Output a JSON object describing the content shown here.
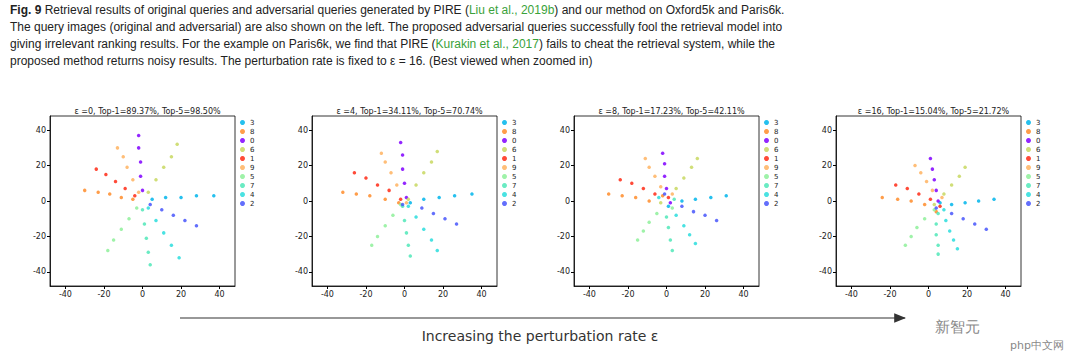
{
  "caption": {
    "label": "Fig. 9",
    "lines": [
      [
        " Retrieval results of original queries and adversarial queries generated by PIRE (",
        {
          "citation": "Liu et al., 2019b"
        },
        ") and our method on Oxford5k and Paris6k."
      ],
      [
        "The query images (original and adversarial) are also shown on the left. The proposed adversarial queries successfully fool the retrieval model into"
      ],
      [
        "giving irrelevant ranking results. For the example on Paris6k, we find that PIRE (",
        {
          "citation": "Kurakin et al., 2017"
        },
        ") fails to cheat the retrieval system, while the"
      ],
      [
        "proposed method returns noisy results. The perturbation rate is fixed to ε = 16. (Best viewed when zoomed in)"
      ]
    ]
  },
  "chart_data": [
    {
      "type": "scatter",
      "title": "ε =0, Top-1=89.37%, Top-5=98.50%",
      "xlim": [
        -48,
        48
      ],
      "ylim": [
        -48,
        48
      ],
      "xticks": [
        -40,
        -20,
        0,
        20,
        40
      ],
      "yticks": [
        -40,
        -20,
        0,
        20,
        40
      ],
      "legend": "right",
      "series": [
        {
          "name": "3",
          "color": "#00b5eb",
          "values": [
            [
              5,
              1
            ],
            [
              12,
              2
            ],
            [
              20,
              2
            ],
            [
              28,
              3
            ],
            [
              37,
              3
            ]
          ]
        },
        {
          "name": "8",
          "color": "#ff8c2a",
          "values": [
            [
              -5,
              1
            ],
            [
              -11,
              2
            ],
            [
              -17,
              4
            ],
            [
              -23,
              5
            ],
            [
              -30,
              6
            ]
          ]
        },
        {
          "name": "0",
          "color": "#8000ff",
          "values": [
            [
              0,
              6
            ],
            [
              -1,
              14
            ],
            [
              -1,
              22
            ],
            [
              -2,
              30
            ],
            [
              -2,
              37
            ]
          ]
        },
        {
          "name": "6",
          "color": "#c8d860",
          "values": [
            [
              3,
              5
            ],
            [
              7,
              12
            ],
            [
              11,
              19
            ],
            [
              15,
              25
            ],
            [
              18,
              32
            ]
          ]
        },
        {
          "name": "1",
          "color": "#ff2a15",
          "values": [
            [
              -4,
              3
            ],
            [
              -9,
              7
            ],
            [
              -14,
              11
            ],
            [
              -19,
              15
            ],
            [
              -24,
              18
            ]
          ]
        },
        {
          "name": "9",
          "color": "#ffb360",
          "values": [
            [
              -2,
              5
            ],
            [
              -5,
              12
            ],
            [
              -8,
              19
            ],
            [
              -10,
              25
            ],
            [
              -13,
              30
            ]
          ]
        },
        {
          "name": "5",
          "color": "#8ef09a",
          "values": [
            [
              -3,
              -4
            ],
            [
              -7,
              -10
            ],
            [
              -11,
              -16
            ],
            [
              -15,
              -22
            ],
            [
              -18,
              -28
            ]
          ]
        },
        {
          "name": "7",
          "color": "#50e8b8",
          "values": [
            [
              0,
              -5
            ],
            [
              1,
              -13
            ],
            [
              2,
              -21
            ],
            [
              3,
              -29
            ],
            [
              4,
              -36
            ]
          ]
        },
        {
          "name": "4",
          "color": "#2adddd",
          "values": [
            [
              3,
              -4
            ],
            [
              7,
              -11
            ],
            [
              11,
              -18
            ],
            [
              15,
              -25
            ],
            [
              19,
              -32
            ]
          ]
        },
        {
          "name": "2",
          "color": "#4856fb",
          "values": [
            [
              4,
              -2
            ],
            [
              10,
              -5
            ],
            [
              16,
              -8
            ],
            [
              22,
              -11
            ],
            [
              28,
              -14
            ]
          ]
        }
      ]
    },
    {
      "type": "scatter",
      "title": "ε =4, Top-1=34.11%, Top-5=70.74%",
      "xlim": [
        -48,
        48
      ],
      "ylim": [
        -48,
        48
      ],
      "xticks": [
        -40,
        -20,
        0,
        20,
        40
      ],
      "yticks": [
        -40,
        -20,
        0,
        20,
        40
      ],
      "legend": "right",
      "series": [
        {
          "name": "3",
          "color": "#00b5eb",
          "values": [
            [
              3,
              -1
            ],
            [
              10,
              1
            ],
            [
              18,
              2
            ],
            [
              26,
              3
            ],
            [
              35,
              4
            ]
          ]
        },
        {
          "name": "8",
          "color": "#ff8c2a",
          "values": [
            [
              -3,
              -1
            ],
            [
              -10,
              1
            ],
            [
              -18,
              3
            ],
            [
              -25,
              4
            ],
            [
              -32,
              5
            ]
          ]
        },
        {
          "name": "0",
          "color": "#8000ff",
          "values": [
            [
              1,
              2
            ],
            [
              0,
              10
            ],
            [
              -1,
              18
            ],
            [
              -1,
              26
            ],
            [
              -2,
              33
            ]
          ]
        },
        {
          "name": "6",
          "color": "#c8d860",
          "values": [
            [
              2,
              1
            ],
            [
              6,
              9
            ],
            [
              10,
              16
            ],
            [
              14,
              22
            ],
            [
              17,
              28
            ]
          ]
        },
        {
          "name": "1",
          "color": "#ff2a15",
          "values": [
            [
              -2,
              1
            ],
            [
              -8,
              6
            ],
            [
              -14,
              9
            ],
            [
              -20,
              13
            ],
            [
              -26,
              16
            ]
          ]
        },
        {
          "name": "9",
          "color": "#ffb360",
          "values": [
            [
              1,
              -1
            ],
            [
              -4,
              9
            ],
            [
              -7,
              16
            ],
            [
              -10,
              22
            ],
            [
              -12,
              27
            ]
          ]
        },
        {
          "name": "5",
          "color": "#8ef09a",
          "values": [
            [
              -2,
              -2
            ],
            [
              -6,
              -8
            ],
            [
              -10,
              -14
            ],
            [
              -14,
              -20
            ],
            [
              -17,
              -25
            ]
          ]
        },
        {
          "name": "7",
          "color": "#50e8b8",
          "values": [
            [
              -1,
              -3
            ],
            [
              0,
              -11
            ],
            [
              1,
              -18
            ],
            [
              2,
              -25
            ],
            [
              3,
              -31
            ]
          ]
        },
        {
          "name": "4",
          "color": "#2adddd",
          "values": [
            [
              2,
              -3
            ],
            [
              6,
              -9
            ],
            [
              10,
              -16
            ],
            [
              14,
              -22
            ],
            [
              17,
              -28
            ]
          ]
        },
        {
          "name": "2",
          "color": "#4856fb",
          "values": [
            [
              -1,
              -2
            ],
            [
              9,
              -4
            ],
            [
              15,
              -7
            ],
            [
              21,
              -10
            ],
            [
              27,
              -13
            ]
          ]
        }
      ]
    },
    {
      "type": "scatter",
      "title": "ε =8, Top-1=17.23%, Top-5=42.11%",
      "xlim": [
        -48,
        48
      ],
      "ylim": [
        -48,
        48
      ],
      "xticks": [
        -40,
        -20,
        0,
        20,
        40
      ],
      "yticks": [
        -40,
        -20,
        0,
        20,
        40
      ],
      "legend": "right",
      "series": [
        {
          "name": "3",
          "color": "#00b5eb",
          "values": [
            [
              1,
              -3
            ],
            [
              8,
              0
            ],
            [
              15,
              1
            ],
            [
              23,
              2
            ],
            [
              31,
              3
            ]
          ]
        },
        {
          "name": "8",
          "color": "#ff8c2a",
          "values": [
            [
              -2,
              3
            ],
            [
              -9,
              0
            ],
            [
              -16,
              2
            ],
            [
              -23,
              3
            ],
            [
              -30,
              4
            ]
          ]
        },
        {
          "name": "0",
          "color": "#8000ff",
          "values": [
            [
              2,
              -1
            ],
            [
              0,
              7
            ],
            [
              -1,
              14
            ],
            [
              -1,
              21
            ],
            [
              -2,
              27
            ]
          ]
        },
        {
          "name": "6",
          "color": "#c8d860",
          "values": [
            [
              -3,
              -1
            ],
            [
              5,
              7
            ],
            [
              9,
              13
            ],
            [
              13,
              19
            ],
            [
              16,
              24
            ]
          ]
        },
        {
          "name": "1",
          "color": "#ff2a15",
          "values": [
            [
              1,
              2
            ],
            [
              -6,
              4
            ],
            [
              -12,
              7
            ],
            [
              -18,
              10
            ],
            [
              -24,
              12
            ]
          ]
        },
        {
          "name": "9",
          "color": "#ffb360",
          "values": [
            [
              3,
              4
            ],
            [
              -3,
              8
            ],
            [
              -6,
              14
            ],
            [
              -9,
              19
            ],
            [
              -11,
              24
            ]
          ]
        },
        {
          "name": "5",
          "color": "#8ef09a",
          "values": [
            [
              3,
              -4
            ],
            [
              -5,
              -7
            ],
            [
              -9,
              -12
            ],
            [
              -12,
              -17
            ],
            [
              -15,
              -22
            ]
          ]
        },
        {
          "name": "7",
          "color": "#50e8b8",
          "values": [
            [
              4,
              1
            ],
            [
              0,
              -9
            ],
            [
              1,
              -15
            ],
            [
              2,
              -22
            ],
            [
              3,
              -28
            ]
          ]
        },
        {
          "name": "4",
          "color": "#2adddd",
          "values": [
            [
              -4,
              2
            ],
            [
              5,
              -8
            ],
            [
              9,
              -14
            ],
            [
              12,
              -19
            ],
            [
              15,
              -24
            ]
          ]
        },
        {
          "name": "2",
          "color": "#4856fb",
          "values": [
            [
              -1,
              4
            ],
            [
              8,
              -3
            ],
            [
              14,
              -6
            ],
            [
              20,
              -8
            ],
            [
              26,
              -11
            ]
          ]
        }
      ]
    },
    {
      "type": "scatter",
      "title": "ε =16, Top-1=15.04%, Top-5=21.72%",
      "xlim": [
        -48,
        48
      ],
      "ylim": [
        -48,
        48
      ],
      "xticks": [
        -40,
        -20,
        0,
        20,
        40
      ],
      "yticks": [
        -40,
        -20,
        0,
        20,
        40
      ],
      "legend": "right",
      "series": [
        {
          "name": "3",
          "color": "#00b5eb",
          "values": [
            [
              6,
              -1
            ],
            [
              12,
              -2
            ],
            [
              19,
              -1
            ],
            [
              26,
              0
            ],
            [
              34,
              1
            ]
          ]
        },
        {
          "name": "8",
          "color": "#ff8c2a",
          "values": [
            [
              4,
              -6
            ],
            [
              -2,
              -2
            ],
            [
              -9,
              0
            ],
            [
              -16,
              1
            ],
            [
              -24,
              2
            ]
          ]
        },
        {
          "name": "0",
          "color": "#8000ff",
          "values": [
            [
              5,
              0
            ],
            [
              4,
              6
            ],
            [
              3,
              12
            ],
            [
              2,
              18
            ],
            [
              1,
              24
            ]
          ]
        },
        {
          "name": "6",
          "color": "#c8d860",
          "values": [
            [
              3,
              -2
            ],
            [
              8,
              4
            ],
            [
              12,
              9
            ],
            [
              16,
              14
            ],
            [
              19,
              19
            ]
          ]
        },
        {
          "name": "1",
          "color": "#ff2a15",
          "values": [
            [
              6,
              -3
            ],
            [
              1,
              1
            ],
            [
              -5,
              4
            ],
            [
              -11,
              7
            ],
            [
              -17,
              9
            ]
          ]
        },
        {
          "name": "9",
          "color": "#ffb360",
          "values": [
            [
              7,
              2
            ],
            [
              2,
              6
            ],
            [
              -1,
              11
            ],
            [
              -4,
              16
            ],
            [
              -7,
              20
            ]
          ]
        },
        {
          "name": "5",
          "color": "#8ef09a",
          "values": [
            [
              3,
              -5
            ],
            [
              -2,
              -10
            ],
            [
              -6,
              -15
            ],
            [
              -9,
              -20
            ],
            [
              -12,
              -25
            ]
          ]
        },
        {
          "name": "7",
          "color": "#50e8b8",
          "values": [
            [
              5,
              -7
            ],
            [
              4,
              -13
            ],
            [
              4,
              -19
            ],
            [
              5,
              -25
            ],
            [
              5,
              -30
            ]
          ]
        },
        {
          "name": "4",
          "color": "#2adddd",
          "values": [
            [
              8,
              -5
            ],
            [
              9,
              -11
            ],
            [
              11,
              -17
            ],
            [
              13,
              -22
            ],
            [
              15,
              -27
            ]
          ]
        },
        {
          "name": "2",
          "color": "#4856fb",
          "values": [
            [
              4,
              -4
            ],
            [
              12,
              -7
            ],
            [
              18,
              -10
            ],
            [
              24,
              -13
            ],
            [
              30,
              -16
            ]
          ]
        }
      ]
    }
  ],
  "arrow_label": "Increasing the perturbation rate ε",
  "watermarks": [
    "新智元",
    "php中文网"
  ]
}
